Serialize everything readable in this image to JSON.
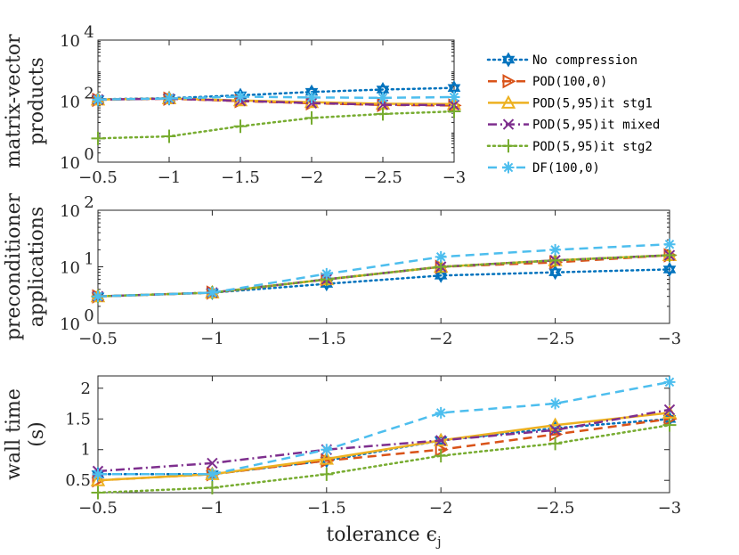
{
  "chart_data": [
    {
      "type": "line",
      "id": "panel1",
      "ylabel": [
        "matrix-vector",
        "products"
      ],
      "xlabel": "",
      "yscale": "log",
      "ylim": [
        1,
        10000
      ],
      "yticks": [
        1,
        100,
        10000
      ],
      "ytick_labels": [
        {
          "base": "10",
          "exp": "0"
        },
        {
          "base": "10",
          "exp": "2"
        },
        {
          "base": "10",
          "exp": "4"
        }
      ],
      "xlim": [
        -0.5,
        -3
      ],
      "x": [
        -0.5,
        -1,
        -1.5,
        -2,
        -2.5,
        -3
      ],
      "xtick_labels": [
        "−0.5",
        "−1",
        "−1.5",
        "−2",
        "−2.5",
        "−3"
      ],
      "series": [
        {
          "name": "No compression",
          "values": [
            115,
            125,
            155,
            200,
            240,
            270
          ]
        },
        {
          "name": "POD(100,0)",
          "values": [
            110,
            120,
            100,
            85,
            75,
            72
          ]
        },
        {
          "name": "POD(5,95)it stg1",
          "values": [
            112,
            122,
            105,
            92,
            82,
            80
          ]
        },
        {
          "name": "POD(5,95)it mixed",
          "values": [
            112,
            120,
            102,
            86,
            76,
            74
          ]
        },
        {
          "name": "POD(5,95)it stg2",
          "values": [
            6,
            7,
            15,
            28,
            38,
            46
          ]
        },
        {
          "name": "DF(100,0)",
          "values": [
            112,
            122,
            140,
            132,
            128,
            135
          ]
        }
      ]
    },
    {
      "type": "line",
      "id": "panel2",
      "ylabel": [
        "preconditioner",
        "applications"
      ],
      "xlabel": "",
      "yscale": "log",
      "ylim": [
        1,
        100
      ],
      "yticks": [
        1,
        10,
        100
      ],
      "ytick_labels": [
        {
          "base": "10",
          "exp": "0"
        },
        {
          "base": "10",
          "exp": "1"
        },
        {
          "base": "10",
          "exp": "2"
        }
      ],
      "xlim": [
        -0.5,
        -3
      ],
      "x": [
        -0.5,
        -1,
        -1.5,
        -2,
        -2.5,
        -3
      ],
      "xtick_labels": [
        "−0.5",
        "−1",
        "−1.5",
        "−2",
        "−2.5",
        "−3"
      ],
      "series": [
        {
          "name": "No compression",
          "values": [
            3,
            3.5,
            5,
            7,
            8,
            9
          ]
        },
        {
          "name": "POD(100,0)",
          "values": [
            3,
            3.5,
            6,
            10,
            12,
            16
          ]
        },
        {
          "name": "POD(5,95)it stg1",
          "values": [
            3,
            3.5,
            6,
            10,
            13,
            16
          ]
        },
        {
          "name": "POD(5,95)it mixed",
          "values": [
            3,
            3.5,
            6,
            10,
            13,
            16
          ]
        },
        {
          "name": "POD(5,95)it stg2",
          "values": [
            3,
            3.5,
            6,
            10,
            13,
            16
          ]
        },
        {
          "name": "DF(100,0)",
          "values": [
            3,
            3.5,
            7.5,
            15,
            20,
            25
          ]
        }
      ]
    },
    {
      "type": "line",
      "id": "panel3",
      "ylabel": [
        "wall time",
        "(s)"
      ],
      "xlabel": "tolerance ϵj",
      "yscale": "linear",
      "ylim": [
        0.3,
        2.2
      ],
      "yticks": [
        0.5,
        1,
        1.5,
        2
      ],
      "ytick_labels": [
        "0.5",
        "1",
        "1.5",
        "2"
      ],
      "xlim": [
        -0.5,
        -3
      ],
      "x": [
        -0.5,
        -1,
        -1.5,
        -2,
        -2.5,
        -3
      ],
      "xtick_labels": [
        "−0.5",
        "−1",
        "−1.5",
        "−2",
        "−2.5",
        "−3"
      ],
      "series": [
        {
          "name": "No compression",
          "values": [
            0.6,
            0.6,
            0.82,
            1.15,
            1.35,
            1.5
          ]
        },
        {
          "name": "POD(100,0)",
          "values": [
            0.5,
            0.6,
            0.82,
            1.0,
            1.25,
            1.5
          ]
        },
        {
          "name": "POD(5,95)it stg1",
          "values": [
            0.5,
            0.6,
            0.85,
            1.15,
            1.4,
            1.6
          ]
        },
        {
          "name": "POD(5,95)it mixed",
          "values": [
            0.65,
            0.78,
            1.0,
            1.15,
            1.32,
            1.65
          ]
        },
        {
          "name": "POD(5,95)it stg2",
          "values": [
            0.3,
            0.38,
            0.6,
            0.9,
            1.1,
            1.4
          ]
        },
        {
          "name": "DF(100,0)",
          "values": [
            0.6,
            0.6,
            1.0,
            1.6,
            1.75,
            2.1
          ]
        }
      ]
    }
  ],
  "legend": {
    "placement": "right of top panel",
    "entries": [
      {
        "label": "No compression",
        "color": "#0072BD",
        "dash": "dotted",
        "marker": "hexagram"
      },
      {
        "label": "POD(100,0)",
        "color": "#D95319",
        "dash": "dashed",
        "marker": "triangle-right"
      },
      {
        "label": "POD(5,95)it stg1",
        "color": "#EDB120",
        "dash": "solid",
        "marker": "triangle-up"
      },
      {
        "label": "POD(5,95)it mixed",
        "color": "#7E2F8E",
        "dash": "dashdot",
        "marker": "x"
      },
      {
        "label": "POD(5,95)it stg2",
        "color": "#77AC30",
        "dash": "dotted",
        "marker": "plus"
      },
      {
        "label": "DF(100,0)",
        "color": "#4DBEEE",
        "dash": "dashed",
        "marker": "asterisk"
      }
    ]
  }
}
